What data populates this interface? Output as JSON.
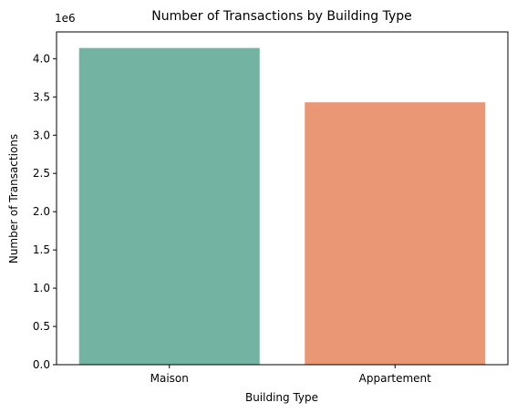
{
  "chart_data": {
    "type": "bar",
    "title": "Number of Transactions by Building Type",
    "xlabel": "Building Type",
    "ylabel": "Number of Transactions",
    "categories": [
      "Maison",
      "Appartement"
    ],
    "values": [
      4140000,
      3430000
    ],
    "colors": [
      "#72b4a1",
      "#ea9775"
    ],
    "ylim": [
      0,
      4350000
    ],
    "yticks": [
      0,
      500000,
      1000000,
      1500000,
      2000000,
      2500000,
      3000000,
      3500000,
      4000000
    ],
    "ytick_labels": [
      "0.0",
      "0.5",
      "1.0",
      "1.5",
      "2.0",
      "2.5",
      "3.0",
      "3.5",
      "4.0"
    ],
    "y_offset_label": "1e6",
    "grid": false,
    "legend": "none"
  }
}
